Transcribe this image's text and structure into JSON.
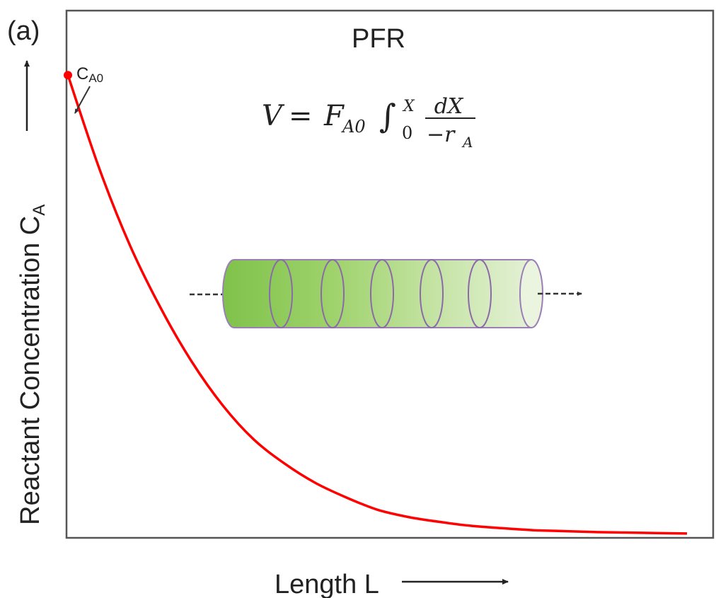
{
  "panel_label": "(a)",
  "title": "PFR",
  "equation": {
    "lhs": "V",
    "equals": "=",
    "coef_main": "F",
    "coef_sub": "A0",
    "integral": "∫",
    "lower": "0",
    "upper": "X",
    "numerator": "dX",
    "denom_main": "−r",
    "denom_sub": "A"
  },
  "annotation": {
    "main": "C",
    "sub": "A0"
  },
  "chart_data": {
    "type": "line",
    "title": "PFR",
    "xlabel": "Length L",
    "ylabel": "Reactant Concentration C",
    "ylabel_sub": "A",
    "series": [
      {
        "color": "#ff0000",
        "x": [
          0,
          0.05,
          0.1,
          0.15,
          0.2,
          0.25,
          0.3,
          0.35,
          0.4,
          0.45,
          0.5,
          0.55,
          0.6,
          0.65,
          0.7,
          0.75,
          0.8,
          0.85,
          0.9,
          0.95,
          1.0
        ],
        "y": [
          0.95,
          0.76,
          0.6,
          0.47,
          0.36,
          0.27,
          0.2,
          0.15,
          0.11,
          0.08,
          0.055,
          0.04,
          0.03,
          0.022,
          0.017,
          0.013,
          0.011,
          0.009,
          0.008,
          0.007,
          0.006
        ]
      }
    ],
    "highlight_point": {
      "x": 0,
      "y": 0.95,
      "color": "#ff0000"
    },
    "xlim": [
      0,
      1.04
    ],
    "ylim": [
      0,
      1.08
    ],
    "grid": false
  },
  "reactor": {
    "fill_color": "#8cc63f",
    "outline_color": "#9b7fb5",
    "direction": "left-to-right"
  }
}
